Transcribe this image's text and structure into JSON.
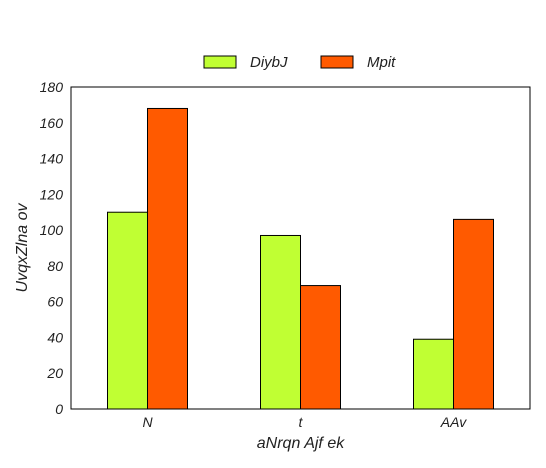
{
  "chart_data": {
    "type": "bar",
    "categories": [
      "N",
      "t",
      "AAv"
    ],
    "series": [
      {
        "name": "DiybJ",
        "values": [
          110,
          97,
          39
        ],
        "color": "#c0ff33"
      },
      {
        "name": "Mpit",
        "values": [
          168,
          69,
          106
        ],
        "color": "#ff5a00"
      }
    ],
    "xlabel": "aNrqn Ajf  ek",
    "ylabel": "UvqxZlna ov",
    "ylim": [
      0,
      180
    ],
    "yticks": [
      0,
      20,
      40,
      60,
      80,
      100,
      120,
      140,
      160,
      180
    ],
    "grid": false,
    "legend_position": "top-center",
    "bar_edge_color": "#000000"
  }
}
